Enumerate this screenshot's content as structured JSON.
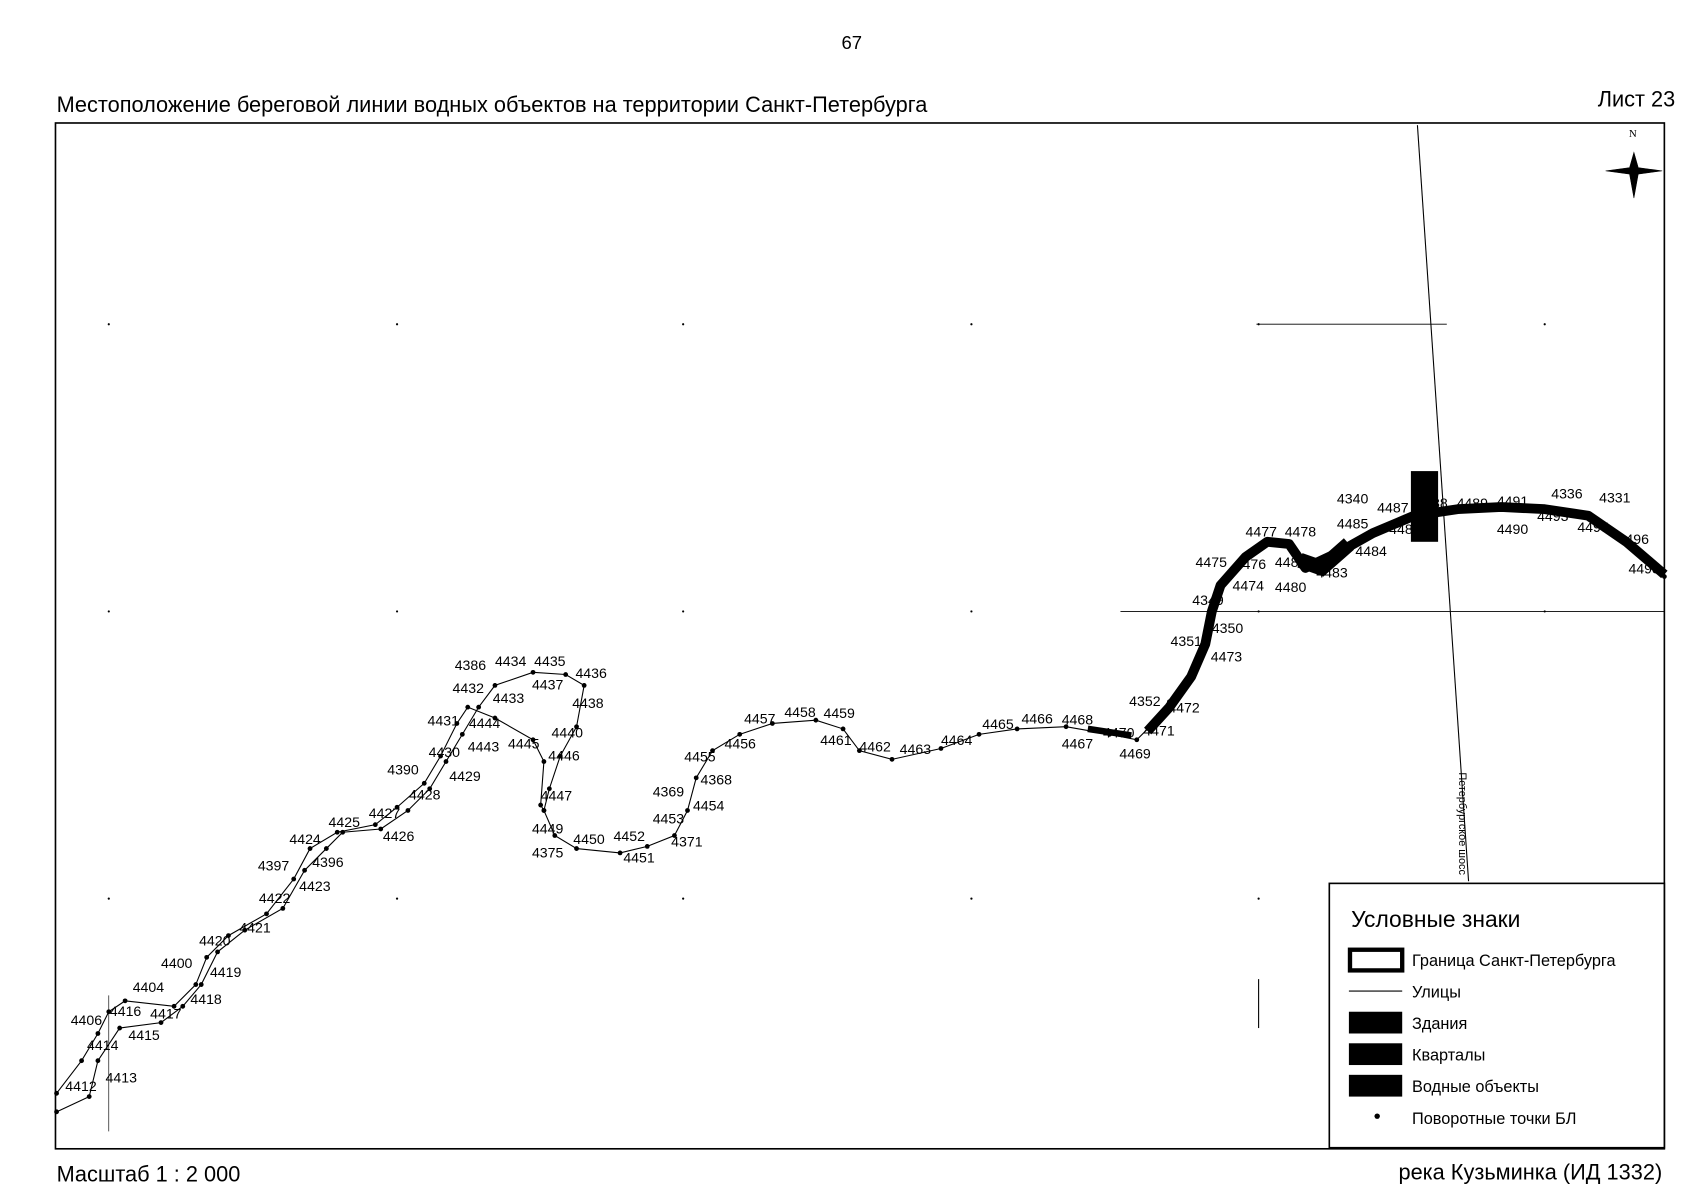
{
  "header": {
    "page_number": "67",
    "title": "Местоположение береговой линии водных объектов на территории Санкт-Петербурга",
    "sheet": "Лист 23"
  },
  "map": {
    "north": "N",
    "street": "Петербургское шосс",
    "points": [
      "4412",
      "4413",
      "4414",
      "4406",
      "4416",
      "4417",
      "4415",
      "4404",
      "4418",
      "4419",
      "4400",
      "4420",
      "4421",
      "4422",
      "4423",
      "4397",
      "4396",
      "4424",
      "4425",
      "4427",
      "4426",
      "4428",
      "4390",
      "4429",
      "4430",
      "4431",
      "4444",
      "4443",
      "4445",
      "4432",
      "4433",
      "4386",
      "4434",
      "4435",
      "4436",
      "4437",
      "4438",
      "4440",
      "4446",
      "4447",
      "4449",
      "4375",
      "4450",
      "4452",
      "4451",
      "4453",
      "4371",
      "4454",
      "4369",
      "4368",
      "4455",
      "4456",
      "4457",
      "4458",
      "4459",
      "4461",
      "4462",
      "4463",
      "4464",
      "4465",
      "4466",
      "4468",
      "4467",
      "4470",
      "4471",
      "4469",
      "4472",
      "4352",
      "4351",
      "4473",
      "4350",
      "4349",
      "4474",
      "4475",
      "4476",
      "4477",
      "4478",
      "4481",
      "4480",
      "4483",
      "4484",
      "4485",
      "4340",
      "4487",
      "4486",
      "4488",
      "4489",
      "4491",
      "4490",
      "4336",
      "4331",
      "4493",
      "4495",
      "4496",
      "4498"
    ]
  },
  "legend": {
    "title": "Условные знаки",
    "items": [
      "Граница Санкт-Петербурга",
      "Улицы",
      "Здания",
      "Кварталы",
      "Водные объекты",
      "Поворотные точки БЛ"
    ]
  },
  "footer": {
    "scale": "Масштаб 1 : 2 000",
    "object": "река Кузьминка (ИД 1332)"
  }
}
